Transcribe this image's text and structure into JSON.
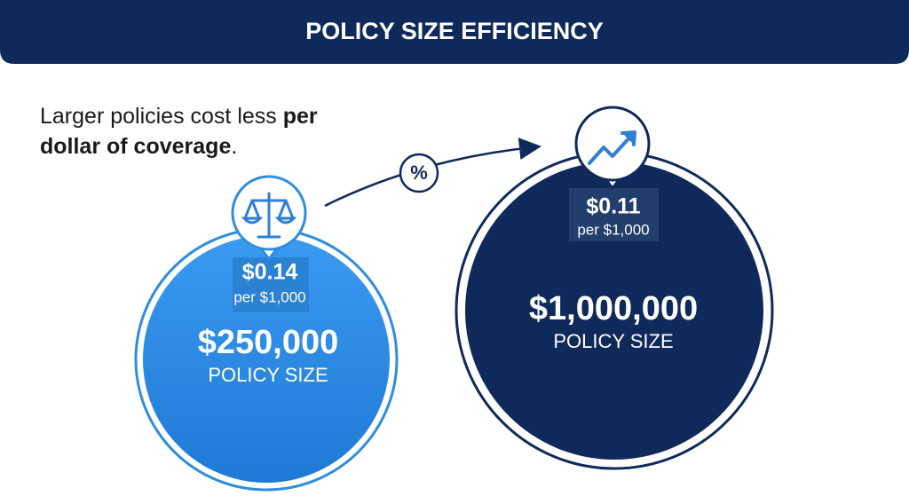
{
  "header": {
    "title": "POLICY SIZE EFFICIENCY"
  },
  "intro": {
    "text": "Larger policies cost less",
    "emphasis": "per dollar of coverage",
    "end": "."
  },
  "connector": {
    "symbol": "%"
  },
  "policies": [
    {
      "rate": "$0.14",
      "rate_unit": "per $1,000",
      "amount": "$250,000",
      "label": "POLICY SIZE"
    },
    {
      "rate": "$0.11",
      "rate_unit": "per $1,000",
      "amount": "$1,000,000",
      "label": "POLICY SIZE"
    }
  ]
}
